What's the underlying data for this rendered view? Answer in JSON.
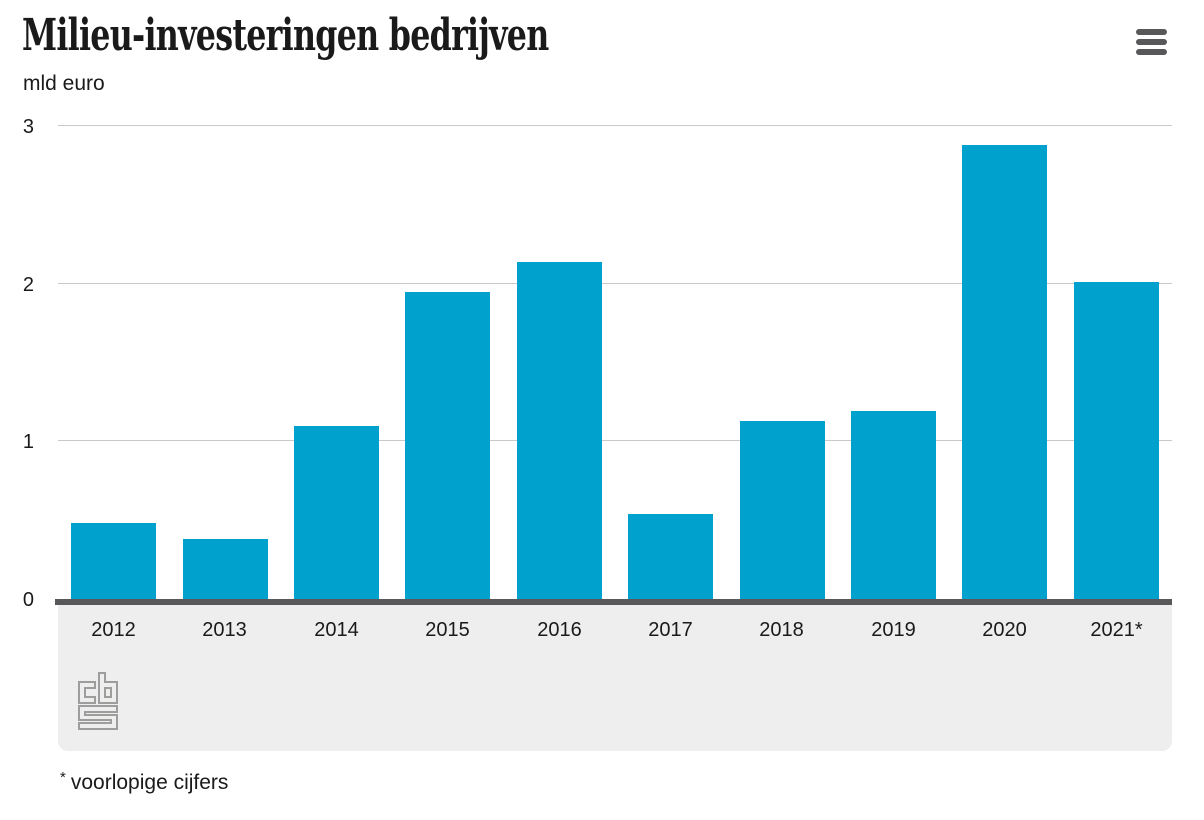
{
  "header": {
    "title": "Milieu-investeringen bedrijven",
    "unit_label": "mld euro"
  },
  "chart_data": {
    "type": "bar",
    "title": "Milieu-investeringen bedrijven",
    "ylabel": "mld euro",
    "xlabel": "",
    "categories": [
      "2012",
      "2013",
      "2014",
      "2015",
      "2016",
      "2017",
      "2018",
      "2019",
      "2020",
      "2021*"
    ],
    "values": [
      0.48,
      0.38,
      1.1,
      1.95,
      2.14,
      0.54,
      1.13,
      1.19,
      2.88,
      2.01
    ],
    "ylim": [
      0,
      3
    ],
    "yticks": [
      0,
      1,
      2,
      3
    ],
    "grid": true,
    "legend": false,
    "bar_color": "#00a1cd",
    "axis_color": "#58585a",
    "gridline_color": "#c9c9c9",
    "footer_band_color": "#eeeeee"
  },
  "footnote": {
    "marker": "*",
    "text": "voorlopige cijfers"
  },
  "branding": {
    "logo_name": "cbs-logo",
    "logo_color": "#9d9d9c"
  },
  "menu": {
    "icon": "hamburger-icon"
  }
}
